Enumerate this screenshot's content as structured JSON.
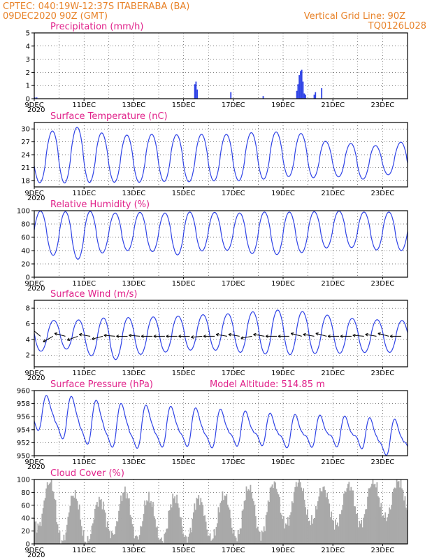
{
  "header": {
    "line1_left": "CPTEC:   040:19W-12:37S   ITABERABA (BA)",
    "line2_left": "09DEC2020 90Z (GMT)",
    "line1_right": "Vertical Grid Line: 90Z",
    "line2_right": "TQ0126L028"
  },
  "colors": {
    "line": "#2f43e6",
    "cloud": "#a9a9a9",
    "title": "#e0218a",
    "header": "#e8832a"
  },
  "chart_data": [
    {
      "type": "bar",
      "title": "Precipitation (mm/h)",
      "ylim": [
        0,
        5
      ],
      "yticks": [
        "0",
        "1",
        "2",
        "3",
        "4",
        "5"
      ],
      "xticklabels": [
        "9DEC",
        "11DEC",
        "13DEC",
        "15DEC",
        "17DEC",
        "19DEC",
        "21DEC",
        "23DEC"
      ],
      "x_days": [
        0.02,
        0.1,
        6.45,
        6.5,
        6.55,
        7.9,
        9.2,
        10.55,
        10.6,
        10.65,
        10.7,
        10.75,
        10.8,
        10.85,
        10.9,
        11.25,
        11.3,
        11.55
      ],
      "values": [
        0.1,
        0.1,
        1.1,
        1.3,
        0.7,
        0.5,
        0.2,
        0.6,
        1.1,
        1.8,
        2.1,
        2.2,
        1.3,
        0.4,
        0.3,
        0.3,
        0.5,
        0.8
      ]
    },
    {
      "type": "line",
      "title": "Surface Temperature (nC)",
      "ylim": [
        16.5,
        31.5
      ],
      "yticks": [
        "18",
        "21",
        "24",
        "27",
        "30"
      ],
      "xticklabels": [
        "9DEC",
        "11DEC",
        "13DEC",
        "15DEC",
        "17DEC",
        "19DEC",
        "21DEC",
        "23DEC"
      ],
      "series": [
        {
          "max": [
            28,
            30.1,
            30.5,
            28.5,
            28.6,
            28.8,
            28.6,
            28.8,
            28.7,
            29.3,
            29.3,
            28.8,
            26.5,
            26.7,
            25.9,
            27.3
          ],
          "min": [
            17.5,
            17.4,
            17.5,
            17.6,
            17.5,
            17.8,
            17.6,
            17.9,
            17.9,
            18.1,
            19,
            18.5,
            19.1,
            18,
            19.4,
            19
          ]
        }
      ]
    },
    {
      "type": "line",
      "title": "Relative Humidity (%)",
      "ylim": [
        0,
        100
      ],
      "yticks": [
        "0",
        "20",
        "40",
        "60",
        "80",
        "100"
      ],
      "xticklabels": [
        "9DEC",
        "11DEC",
        "13DEC",
        "15DEC",
        "17DEC",
        "19DEC",
        "21DEC",
        "23DEC"
      ],
      "series": [
        {
          "max": [
            100,
            98,
            100,
            96,
            98,
            96,
            98,
            98,
            96,
            98,
            98,
            98,
            100,
            98,
            98,
            98
          ],
          "min": [
            42,
            30,
            26,
            40,
            40,
            38,
            32,
            42,
            40,
            34,
            34,
            38,
            46,
            44,
            40,
            40
          ]
        }
      ]
    },
    {
      "type": "line",
      "title": "Surface Wind (m/s)",
      "ylim": [
        0.5,
        9
      ],
      "yticks": [
        "2",
        "4",
        "6",
        "8"
      ],
      "xticklabels": [
        "9DEC",
        "11DEC",
        "13DEC",
        "15DEC",
        "17DEC",
        "19DEC",
        "21DEC",
        "23DEC"
      ],
      "series": [
        {
          "max": [
            6.2,
            6.5,
            6.5,
            6.8,
            6.8,
            6.9,
            7,
            7.2,
            7.3,
            7.6,
            7.8,
            7.5,
            7,
            6.6,
            6.5,
            6.4
          ],
          "min": [
            2.3,
            3,
            2.2,
            1.2,
            2,
            2.3,
            2.6,
            2.7,
            2.4,
            2.2,
            2,
            2.2,
            2.2,
            2.3,
            2.4,
            2.2
          ]
        }
      ],
      "vector_directions_deg": [
        -40,
        30,
        -15,
        20,
        -10,
        15,
        -5,
        0,
        -5,
        0,
        0,
        0,
        0,
        5,
        0,
        -10,
        -10,
        10,
        -10,
        0,
        0,
        -15,
        -10,
        -15,
        0,
        0,
        -5,
        -10,
        -15,
        0
      ]
    },
    {
      "type": "line",
      "title": "Surface Pressure (hPa)",
      "subtitle": "Model Altitude: 514.85 m",
      "ylim": [
        950,
        960
      ],
      "yticks": [
        "950",
        "952",
        "954",
        "956",
        "958",
        "960"
      ],
      "xticklabels": [
        "9DEC",
        "11DEC",
        "13DEC",
        "15DEC",
        "17DEC",
        "19DEC",
        "21DEC",
        "23DEC"
      ],
      "series": [
        {
          "max": [
            958.4,
            958.8,
            958.2,
            957.6,
            957.2,
            957.1,
            956.8,
            956.6,
            956.4,
            956,
            955.7,
            955.6,
            955.5,
            955.3,
            955,
            954.9
          ],
          "min": [
            954.5,
            953,
            952.1,
            951.6,
            951.4,
            951.6,
            951.8,
            951.5,
            951.8,
            952,
            951.6,
            951.7,
            951.8,
            951.7,
            950.4,
            950.6
          ]
        }
      ]
    },
    {
      "type": "bar",
      "title": "Cloud Cover (%)",
      "ylim": [
        0,
        100
      ],
      "yticks": [
        "0",
        "20",
        "40",
        "60",
        "80",
        "100"
      ],
      "xticklabels": [
        "9DEC",
        "11DEC",
        "13DEC",
        "15DEC",
        "17DEC",
        "19DEC",
        "21DEC",
        "23DEC"
      ],
      "series": [
        {
          "peaks": [
            97,
            96,
            65,
            70,
            88,
            60,
            80,
            65,
            82,
            90,
            96,
            97,
            80,
            98,
            96,
            98
          ],
          "troughs": [
            30,
            5,
            2,
            15,
            10,
            5,
            8,
            8,
            10,
            12,
            30,
            35,
            30,
            30,
            40,
            45
          ]
        }
      ]
    }
  ]
}
